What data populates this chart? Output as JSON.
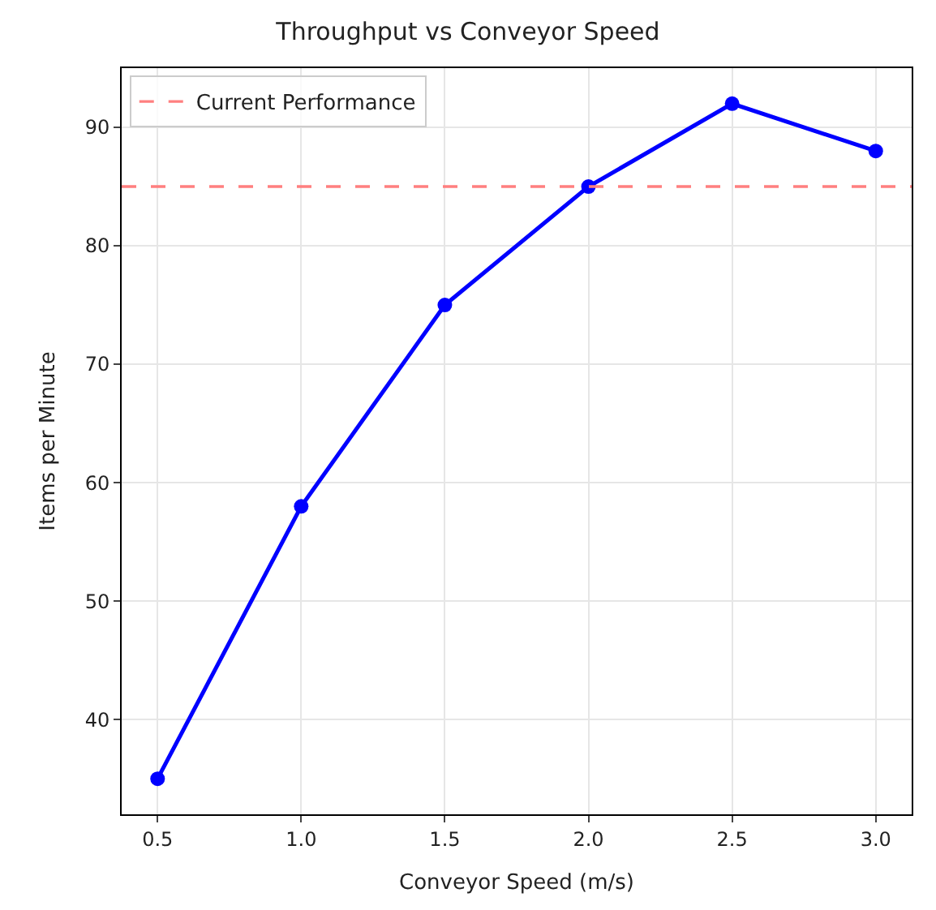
{
  "chart_data": {
    "type": "line",
    "title": "Throughput vs Conveyor Speed",
    "xlabel": "Conveyor Speed (m/s)",
    "ylabel": "Items per Minute",
    "x": [
      0.5,
      1.0,
      1.5,
      2.0,
      2.5,
      3.0
    ],
    "series": [
      {
        "color": "#0000ff",
        "values": [
          35,
          58,
          75,
          85,
          92,
          88
        ]
      }
    ],
    "xlim": [
      0.375,
      3.125
    ],
    "xticks": [
      {
        "value": 0.5,
        "label": "0.5"
      },
      {
        "value": 1.0,
        "label": "1.0"
      },
      {
        "value": 1.5,
        "label": "1.5"
      },
      {
        "value": 2.0,
        "label": "2.0"
      },
      {
        "value": 2.5,
        "label": "2.5"
      },
      {
        "value": 3.0,
        "label": "3.0"
      }
    ],
    "ylim": [
      32,
      95
    ],
    "yticks": [
      40,
      50,
      60,
      70,
      80,
      90
    ],
    "ref_lines": [
      {
        "axis": "y",
        "value": 85,
        "label": "Current Performance",
        "color": "#ff7f7f",
        "line_style": "dashed"
      }
    ],
    "grid": true,
    "legend": "top left",
    "marker": "circle",
    "line_style": "solid"
  }
}
